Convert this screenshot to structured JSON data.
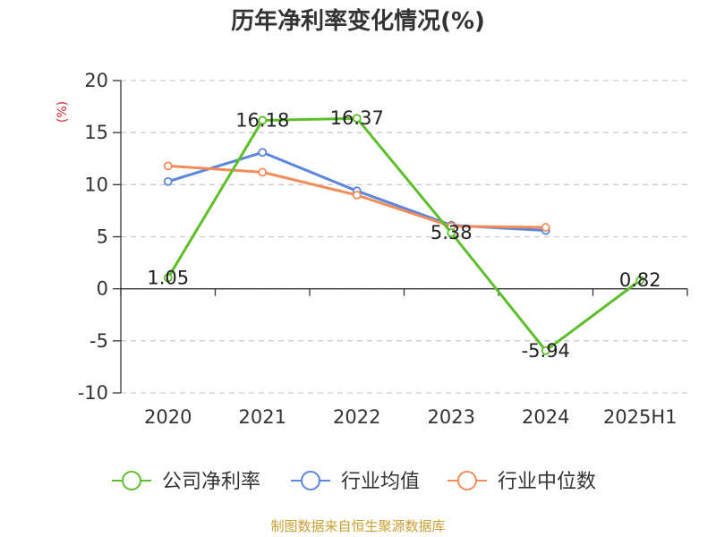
{
  "title": "历年净利率变化情况(%)",
  "source": "制图数据来自恒生聚源数据库",
  "colors": {
    "company": "#5cbf2a",
    "industry_avg": "#5b86dd",
    "industry_median": "#f48c5a",
    "unit": "#d62728",
    "source": "#c8a032",
    "grid": "#cccccc",
    "axis": "#333333"
  },
  "chart_data": {
    "type": "line",
    "unit_label": "(%)",
    "categories": [
      "2020",
      "2021",
      "2022",
      "2023",
      "2024",
      "2025H1"
    ],
    "y_ticks": [
      "20",
      "15",
      "10",
      "5",
      "0",
      "-5",
      "-10"
    ],
    "ylim": [
      -10,
      20
    ],
    "grid": true,
    "legend_position": "bottom",
    "series": [
      {
        "name": "公司净利率",
        "color_key": "company",
        "values": [
          1.05,
          16.18,
          16.37,
          5.38,
          -5.94,
          0.82
        ],
        "labels": [
          "1.05",
          "16.18",
          "16.37",
          "5.38",
          "-5.94",
          "0.82"
        ]
      },
      {
        "name": "行业均值",
        "color_key": "industry_avg",
        "values": [
          10.3,
          13.1,
          9.4,
          6.1,
          5.6,
          null
        ]
      },
      {
        "name": "行业中位数",
        "color_key": "industry_median",
        "values": [
          11.8,
          11.2,
          9.0,
          6.0,
          5.9,
          null
        ]
      }
    ]
  }
}
